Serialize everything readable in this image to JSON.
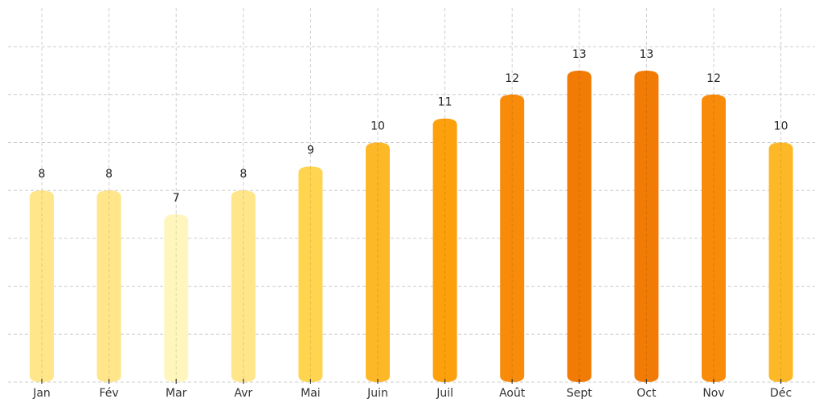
{
  "chart_data": {
    "type": "bar",
    "title": "",
    "xlabel": "",
    "ylabel": "",
    "categories": [
      "Jan",
      "Fév",
      "Mar",
      "Avr",
      "Mai",
      "Juin",
      "Juil",
      "Août",
      "Sept",
      "Oct",
      "Nov",
      "Déc"
    ],
    "values": [
      8,
      8,
      7,
      8,
      9,
      10,
      11,
      12,
      13,
      13,
      12,
      10
    ],
    "colors": [
      "#FFE68A",
      "#FFE68A",
      "#FFF6BE",
      "#FFE68A",
      "#FFD54F",
      "#FDB827",
      "#FCA00C",
      "#F98B0B",
      "#F27B05",
      "#F27B05",
      "#F98B0B",
      "#FDB827"
    ],
    "ylim": [
      0,
      15.6
    ],
    "y_gridlines": [
      0,
      2,
      4,
      6,
      8,
      10,
      12,
      14
    ],
    "grid": true,
    "legend": null,
    "show_value_labels": true
  }
}
